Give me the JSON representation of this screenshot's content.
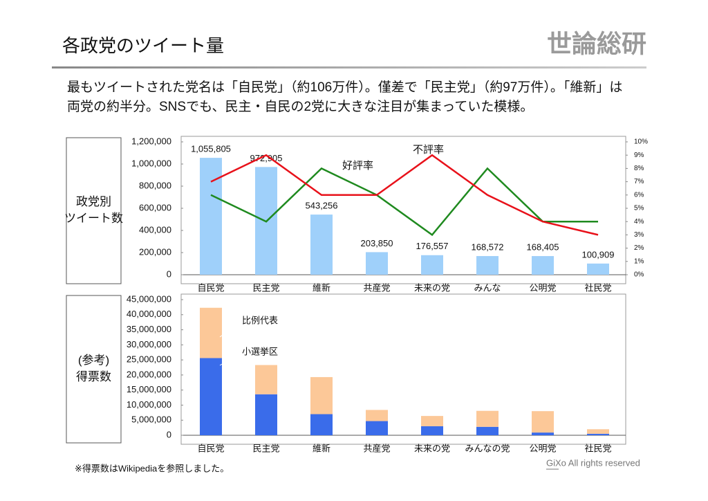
{
  "title": "各政党のツイート量",
  "logo": "世論総研",
  "lead": [
    "最もツイートされた党名は「自民党」（約106万件）。僅差で「民主党」（約97万件）。「維新」は",
    "両党の約半分。SNSでも、民主・自民の2党に大きな注目が集まっていた模様。"
  ],
  "footnote": "※得票数はWikipediaを参照しました。",
  "copyright": "GiXo All rights reserved",
  "chart_data": [
    {
      "type": "bar",
      "y_label": [
        "政党別",
        "ツイート数"
      ],
      "categories": [
        "自民党",
        "民主党",
        "維新",
        "共産党",
        "未来の党",
        "みんな",
        "公明党",
        "社民党"
      ],
      "ylim": [
        0,
        1200000
      ],
      "yticks": [
        0,
        {
          "value": 200000,
          "label": "200,000"
        },
        {
          "value": 400000,
          "label": "400,000"
        },
        {
          "value": 600000,
          "label": "600,000"
        },
        {
          "value": 800000,
          "label": "800,000"
        },
        {
          "value": 1000000,
          "label": "1,000,000"
        },
        {
          "value": 1200000,
          "label": "1,200,000"
        }
      ],
      "y2lim": [
        0,
        10
      ],
      "y2ticks": [
        {
          "value": 0,
          "label": "0%"
        },
        {
          "value": 1,
          "label": "1%"
        },
        {
          "value": 2,
          "label": "2%"
        },
        {
          "value": 3,
          "label": "3%"
        },
        {
          "value": 4,
          "label": "4%"
        },
        {
          "value": 5,
          "label": "5%"
        },
        {
          "value": 6,
          "label": "6%"
        },
        {
          "value": 7,
          "label": "7%"
        },
        {
          "value": 8,
          "label": "8%"
        },
        {
          "value": 9,
          "label": "9%"
        },
        {
          "value": 10,
          "label": "10%"
        }
      ],
      "series": [
        {
          "type": "bar",
          "color": "#9fd0fa",
          "values": [
            1055805,
            972905,
            543256,
            203850,
            176557,
            168572,
            168405,
            100909
          ],
          "value_labels": [
            "1,055,805",
            "972,905",
            "543,256",
            "203,850",
            "176,557",
            "168,572",
            "168,405",
            "100,909"
          ]
        },
        {
          "type": "line",
          "name": "好評率",
          "color": "#1f8a1f",
          "axis": "y2",
          "values": [
            6,
            4,
            8,
            6,
            3,
            8,
            4,
            4
          ]
        },
        {
          "type": "line",
          "name": "不評率",
          "color": "#e8111a",
          "axis": "y2",
          "values": [
            7,
            9,
            6,
            6,
            9,
            6,
            4,
            3
          ]
        }
      ]
    },
    {
      "type": "stacked_bar",
      "y_label": [
        "(参考)",
        "得票数"
      ],
      "categories": [
        "自民党",
        "民主党",
        "維新",
        "共産党",
        "未来の党",
        "みんなの党",
        "公明党",
        "社民党"
      ],
      "ylim": [
        0,
        45000000
      ],
      "yticks": [
        0,
        {
          "value": 5000000,
          "label": "5,000,000"
        },
        {
          "value": 10000000,
          "label": "10,000,000"
        },
        {
          "value": 15000000,
          "label": "15,000,000"
        },
        {
          "value": 20000000,
          "label": "20,000,000"
        },
        {
          "value": 25000000,
          "label": "25,000,000"
        },
        {
          "value": 30000000,
          "label": "30,000,000"
        },
        {
          "value": 35000000,
          "label": "35,000,000"
        },
        {
          "value": 40000000,
          "label": "40,000,000"
        },
        {
          "value": 45000000,
          "label": "45,000,000"
        }
      ],
      "series": [
        {
          "name": "小選挙区",
          "color": "#3a6cea",
          "values": [
            25600000,
            13600000,
            7000000,
            4700000,
            3000000,
            2800000,
            900000,
            500000
          ]
        },
        {
          "name": "比例代表",
          "color": "#fcc898",
          "values": [
            16700000,
            9700000,
            12300000,
            3700000,
            3400000,
            5300000,
            7100000,
            1500000
          ]
        }
      ]
    }
  ]
}
